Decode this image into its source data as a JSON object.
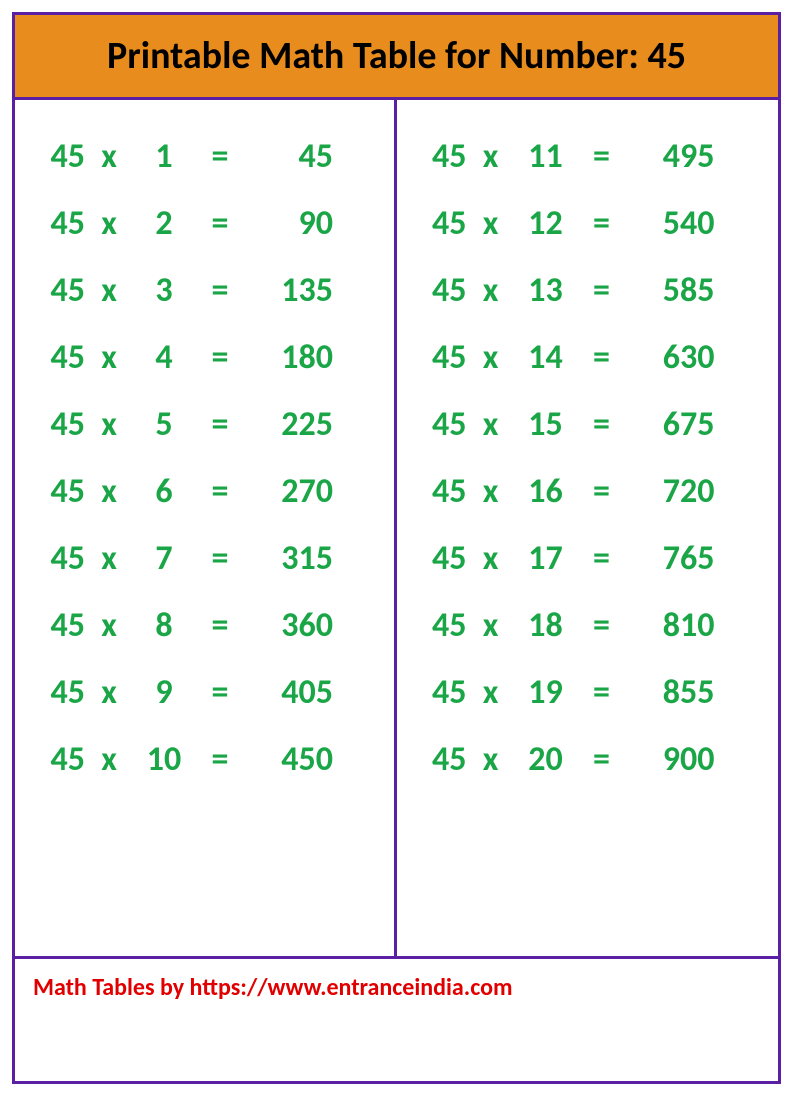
{
  "header": {
    "title": "Printable Math Table for Number: 45",
    "background_color": "#e88c1e",
    "title_color": "#000000",
    "title_fontsize": 38
  },
  "frame": {
    "border_color": "#5b1fa3",
    "border_width": 3
  },
  "math": {
    "color": "#1aa547",
    "fontsize": 34,
    "operator": "x",
    "equals": "=",
    "left_column": [
      {
        "base": "45",
        "mult": "1",
        "result": "45"
      },
      {
        "base": "45",
        "mult": "2",
        "result": "90"
      },
      {
        "base": "45",
        "mult": "3",
        "result": "135"
      },
      {
        "base": "45",
        "mult": "4",
        "result": "180"
      },
      {
        "base": "45",
        "mult": "5",
        "result": "225"
      },
      {
        "base": "45",
        "mult": "6",
        "result": "270"
      },
      {
        "base": "45",
        "mult": "7",
        "result": "315"
      },
      {
        "base": "45",
        "mult": "8",
        "result": "360"
      },
      {
        "base": "45",
        "mult": "9",
        "result": "405"
      },
      {
        "base": "45",
        "mult": "10",
        "result": "450"
      }
    ],
    "right_column": [
      {
        "base": "45",
        "mult": "11",
        "result": "495"
      },
      {
        "base": "45",
        "mult": "12",
        "result": "540"
      },
      {
        "base": "45",
        "mult": "13",
        "result": "585"
      },
      {
        "base": "45",
        "mult": "14",
        "result": "630"
      },
      {
        "base": "45",
        "mult": "15",
        "result": "675"
      },
      {
        "base": "45",
        "mult": "16",
        "result": "720"
      },
      {
        "base": "45",
        "mult": "17",
        "result": "765"
      },
      {
        "base": "45",
        "mult": "18",
        "result": "810"
      },
      {
        "base": "45",
        "mult": "19",
        "result": "855"
      },
      {
        "base": "45",
        "mult": "20",
        "result": "900"
      }
    ]
  },
  "footer": {
    "credit": "Math Tables by https://www.entranceindia.com",
    "color": "#e10000",
    "fontsize": 24
  }
}
